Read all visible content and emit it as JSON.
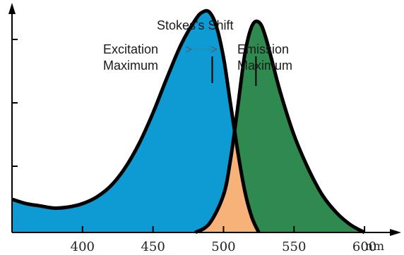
{
  "chart_data": {
    "type": "area",
    "title": "Stokes's Shift",
    "xlabel": "nm",
    "ylabel": "",
    "xlim": [
      350,
      625
    ],
    "ylim": [
      0,
      1.05
    ],
    "x_ticks": [
      400,
      450,
      500,
      550,
      600
    ],
    "grid": false,
    "annotations": {
      "excitation": [
        "Excitation",
        "Maximum"
      ],
      "emission": [
        "Emission",
        "Maximum"
      ]
    },
    "excitation_peak_x": 492,
    "emission_peak_x": 523,
    "series": [
      {
        "fill": "#0e9ad3",
        "x": [
          350,
          360,
          370,
          380,
          390,
          400,
          410,
          420,
          430,
          440,
          450,
          460,
          470,
          480,
          485,
          490,
          495,
          500,
          505,
          510,
          515,
          520,
          525
        ],
        "y": [
          0.15,
          0.13,
          0.12,
          0.11,
          0.115,
          0.13,
          0.16,
          0.21,
          0.29,
          0.4,
          0.54,
          0.7,
          0.85,
          0.96,
          0.995,
          0.995,
          0.93,
          0.79,
          0.58,
          0.37,
          0.19,
          0.07,
          0.0
        ]
      },
      {
        "fill": "#2f8a4f",
        "x": [
          480,
          490,
          500,
          505,
          510,
          515,
          520,
          525,
          530,
          540,
          550,
          560,
          570,
          580,
          590,
          600
        ],
        "y": [
          0.0,
          0.04,
          0.17,
          0.33,
          0.56,
          0.8,
          0.93,
          0.95,
          0.88,
          0.64,
          0.44,
          0.29,
          0.17,
          0.09,
          0.035,
          0.0
        ]
      }
    ],
    "overlap_fill": "#f7b27a",
    "stroke": "#000000"
  }
}
